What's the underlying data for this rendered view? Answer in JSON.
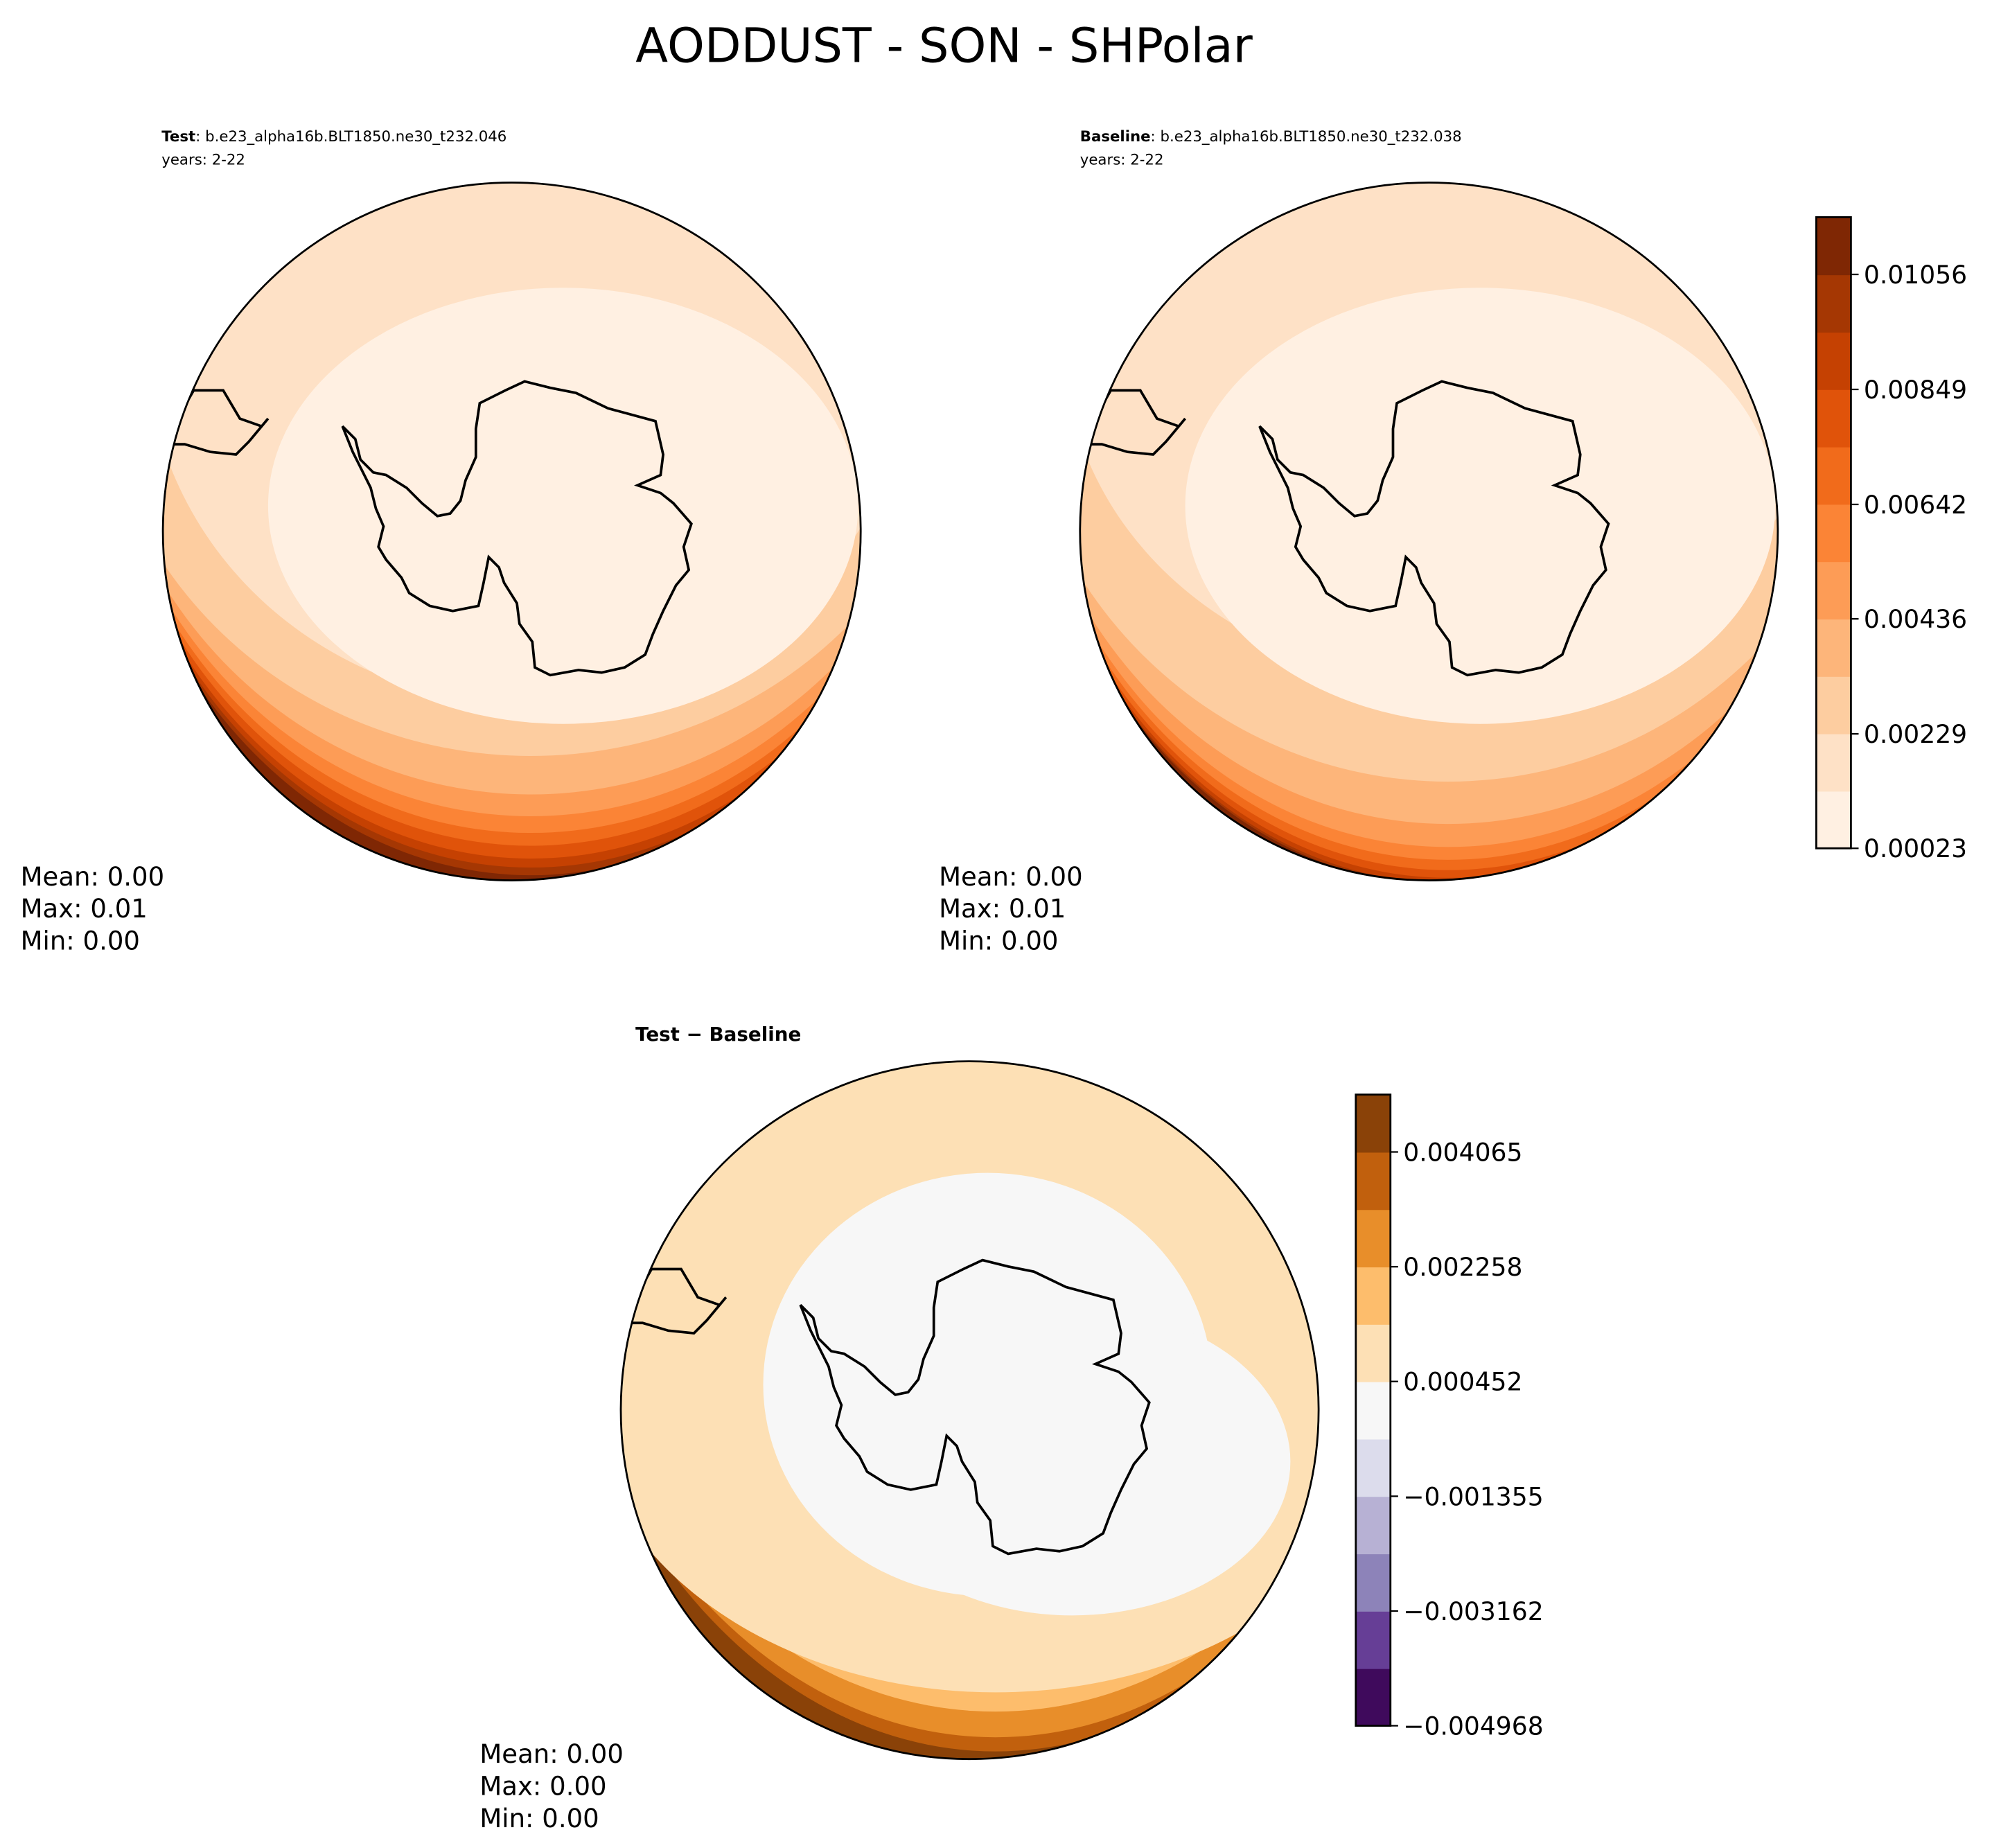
{
  "title": "AODDUST - SON - SHPolar",
  "chart_data": [
    {
      "type": "contour",
      "label": "Test",
      "case": ": b.e23_alpha16b.BLT1850.ne30_t232.046",
      "years": "years: 2-22",
      "stats": [
        "Mean:  0.00",
        "Max:  0.01",
        "Min:  0.00"
      ]
    },
    {
      "type": "contour",
      "label": "Baseline",
      "case": ": b.e23_alpha16b.BLT1850.ne30_t232.038",
      "years": "years: 2-22",
      "stats": [
        "Mean:  0.00",
        "Max:  0.01",
        "Min:  0.00"
      ],
      "colorbar": {
        "ylim": [
          0.00023,
          0.01159
        ],
        "yticks": [
          0.00023,
          0.00229,
          0.00436,
          0.00642,
          0.00849,
          0.01056
        ],
        "colors": [
          "#fff0e2",
          "#fee1c6",
          "#fdcda0",
          "#fdb57a",
          "#fd9c56",
          "#fb8436",
          "#f16b1b",
          "#e0530a",
          "#c54102",
          "#a53703",
          "#7f2704"
        ]
      }
    },
    {
      "type": "contour",
      "label": "Test − Baseline",
      "stats": [
        "Mean:  0.00",
        "Max:  0.00",
        "Min:  0.00"
      ],
      "colorbar": {
        "ylim": [
          -0.004968,
          0.004968
        ],
        "yticks": [
          {
            "value": -0.004968,
            "label": "−0.004968"
          },
          {
            "value": -0.003162,
            "label": "−0.003162"
          },
          {
            "value": -0.001355,
            "label": "−0.001355"
          },
          0.000452,
          0.002258,
          0.004065
        ],
        "colors": [
          "#3f0a5c",
          "#663e96",
          "#8d83b9",
          "#b7b1d4",
          "#dcdcec",
          "#f7f7f7",
          "#fde0b5",
          "#fdbd6c",
          "#e88e2a",
          "#c1600d",
          "#8a4208"
        ]
      }
    }
  ]
}
